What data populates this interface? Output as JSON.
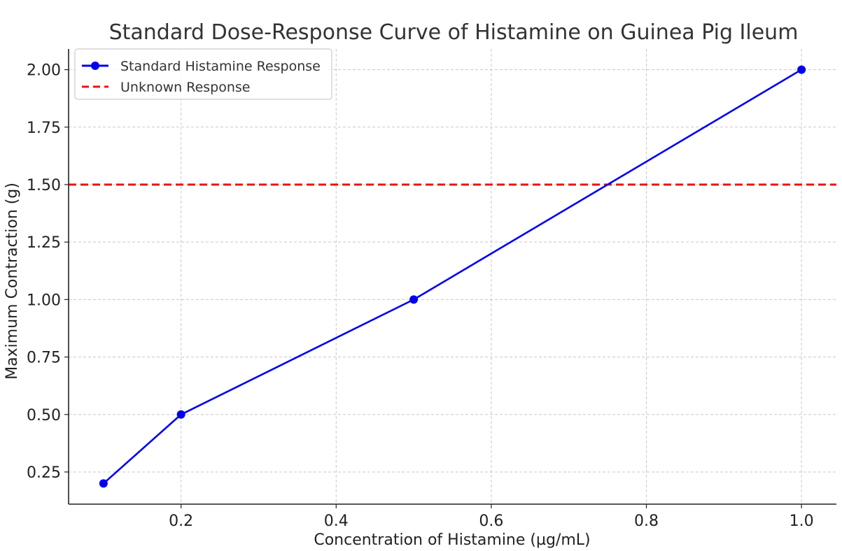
{
  "chart_data": {
    "type": "line",
    "title": "Standard Dose-Response Curve of Histamine on Guinea Pig Ileum",
    "xlabel": "Concentration of Histamine (µg/mL)",
    "ylabel": "Maximum Contraction (g)",
    "xlim": [
      0.055,
      1.045
    ],
    "ylim": [
      0.11,
      2.09
    ],
    "x_ticks": [
      0.2,
      0.4,
      0.6,
      0.8,
      1.0
    ],
    "x_tick_labels": [
      "0.2",
      "0.4",
      "0.6",
      "0.8",
      "1.0"
    ],
    "y_ticks": [
      0.25,
      0.5,
      0.75,
      1.0,
      1.25,
      1.5,
      1.75,
      2.0
    ],
    "y_tick_labels": [
      "0.25",
      "0.50",
      "0.75",
      "1.00",
      "1.25",
      "1.50",
      "1.75",
      "2.00"
    ],
    "grid": true,
    "legend_position": "top-left",
    "series": [
      {
        "name": "Standard Histamine Response",
        "color": "#0000ee",
        "style": "solid",
        "marker": "circle",
        "x": [
          0.1,
          0.2,
          0.5,
          1.0
        ],
        "y": [
          0.2,
          0.5,
          1.0,
          2.0
        ]
      }
    ],
    "hlines": [
      {
        "name": "Unknown Response",
        "y": 1.5,
        "color": "#ee1111",
        "style": "dashed"
      }
    ]
  }
}
